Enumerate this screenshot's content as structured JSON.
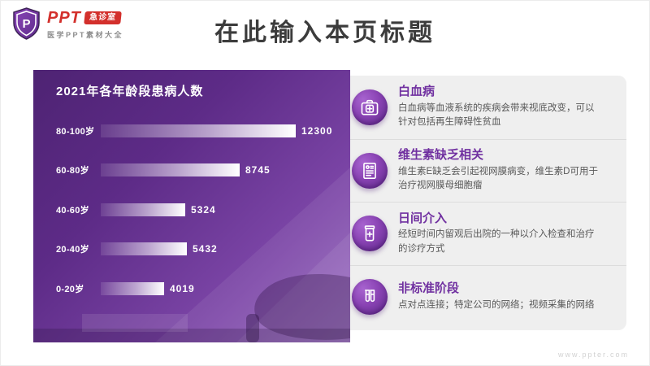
{
  "logo": {
    "brand": "PPT",
    "badge": "急诊室",
    "subtitle": "医学PPT素材大全",
    "monogram": "P"
  },
  "header": {
    "title": "在此输入本页标题"
  },
  "chart_data": {
    "type": "bar",
    "orientation": "horizontal",
    "title": "2021年各年龄段患病人数",
    "categories": [
      "80-100岁",
      "60-80岁",
      "40-60岁",
      "20-40岁",
      "0-20岁"
    ],
    "values": [
      12300,
      8745,
      5324,
      5432,
      4019
    ],
    "xlim": [
      0,
      12300
    ],
    "value_labels_shown": true,
    "grid": false,
    "bar_style": "white gradient on purple panel"
  },
  "info_items": [
    {
      "icon": "first-aid-kit-icon",
      "title": "白血病",
      "desc": "白血病等血液系统的疾病会带来视底改变，可以针对包括再生障碍性贫血"
    },
    {
      "icon": "medical-report-icon",
      "title": "维生素缺乏相关",
      "desc": "维生素E缺乏会引起视网膜病变，维生素D可用于治疗视网膜母细胞瘤"
    },
    {
      "icon": "medicine-jar-icon",
      "title": "日间介入",
      "desc": "经短时间内留观后出院的一种以介入检查和治疗的诊疗方式"
    },
    {
      "icon": "test-tubes-icon",
      "title": "非标准阶段",
      "desc": "点对点连接；特定公司的网络；视频采集的网络"
    }
  ],
  "footer": {
    "url": "www.ppter.com"
  },
  "colors": {
    "accent_purple": "#7030a0",
    "panel_purple_dark": "#4e2373",
    "panel_purple_light": "#9a6cc2",
    "brand_red": "#d3302c",
    "info_panel_gray": "#efefef",
    "title_dark": "#3c3c3c",
    "desc_gray": "#595959"
  }
}
